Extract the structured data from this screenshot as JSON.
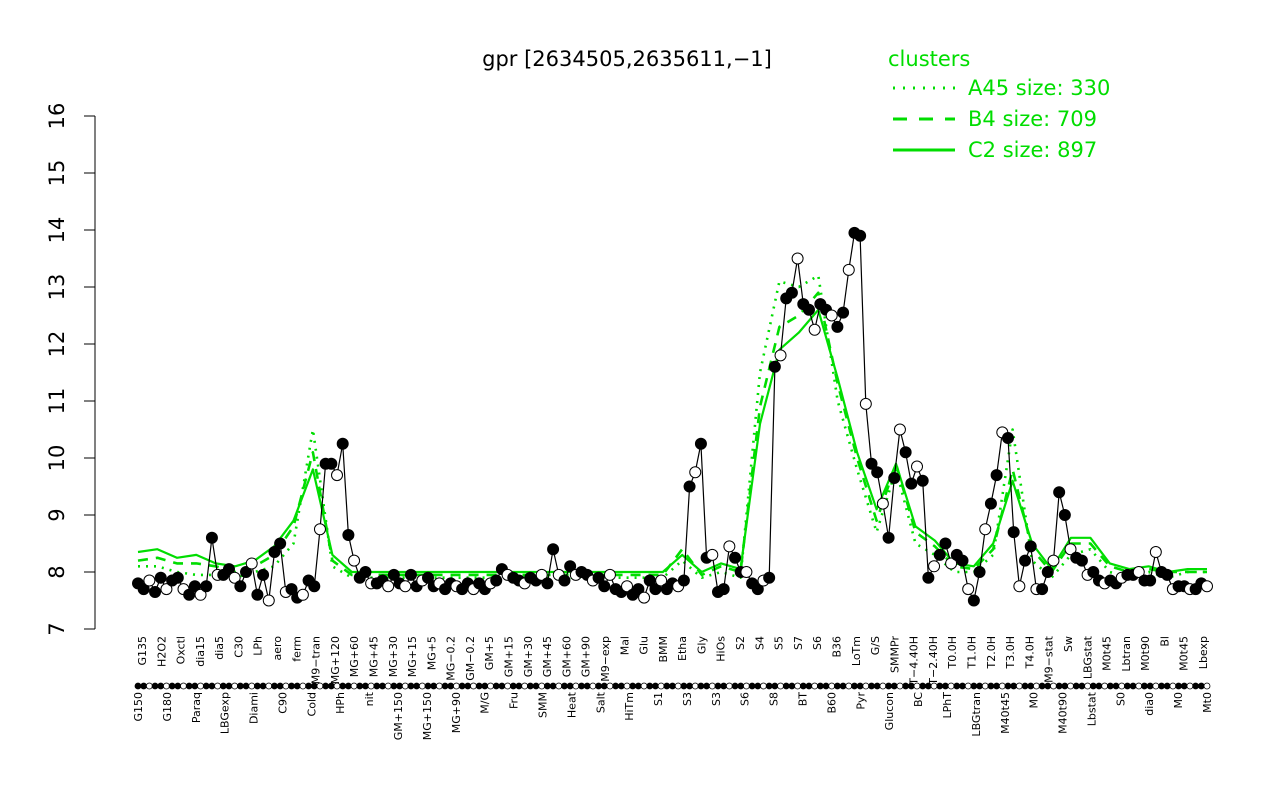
{
  "chart_data": {
    "type": "line",
    "title": "gpr [2634505,2635611,−1]",
    "xlabel": "",
    "ylabel": "",
    "ylim": [
      7,
      16
    ],
    "yticks": [
      7,
      8,
      9,
      10,
      11,
      12,
      13,
      14,
      15,
      16
    ],
    "grid": false,
    "x_tick_labels_top": [
      "G135",
      "H2O2",
      "Oxctl",
      "dia15",
      "dia5",
      "C30",
      "LPh",
      "aero",
      "ferm",
      "M9−tran",
      "MG+120",
      "MG+60",
      "MG+45",
      "MG+30",
      "MG+15",
      "MG+5",
      "MG−0.2",
      "GM−0.2",
      "GM+5",
      "GM+15",
      "GM+30",
      "GM+45",
      "GM+60",
      "GM+90",
      "M9−exp",
      "Mal",
      "Glu",
      "BMM",
      "Etha",
      "Gly",
      "HiOs",
      "S2",
      "S4",
      "S5",
      "S7",
      "S6",
      "B36",
      "LoTm",
      "G/S",
      "SMMPr",
      "T−4.40H",
      "T−2.40H",
      "T0.0H",
      "T1.0H",
      "T2.0H",
      "T3.0H",
      "T4.0H",
      "M9−stat",
      "Sw",
      "LBGstat",
      "M0t45",
      "Lbtran",
      "M0t90",
      "Bl",
      "M0t45",
      "Lbexp"
    ],
    "x_tick_labels_bottom": [
      "G150",
      "G180",
      "Paraq",
      "LBGexp",
      "Diami",
      "C90",
      "Cold",
      "HPh",
      "nit",
      "GM+150",
      "MG+150",
      "MG+90",
      "M/G",
      "Fru",
      "SMM",
      "Heat",
      "Salt",
      "HiTm",
      "S1",
      "S3",
      "S3",
      "S6",
      "S8",
      "BT",
      "B60",
      "Pyr",
      "Glucon",
      "BC",
      "LPhT",
      "LBGtran",
      "M40t45",
      "M0",
      "M40t90",
      "Lbstat",
      "S0",
      "dia0",
      "M0",
      "Mt0"
    ],
    "legend": {
      "title": "clusters",
      "position": "top-right",
      "entries": [
        {
          "label": "A45 size: 330",
          "style": "dotted"
        },
        {
          "label": "B4 size: 709",
          "style": "dashed"
        },
        {
          "label": "C2 size: 897",
          "style": "solid"
        }
      ]
    },
    "colors": {
      "cluster_lines": "#00dd00",
      "points": "#000000",
      "axis": "#000000"
    },
    "series": [
      {
        "x": 1,
        "y": 7.8
      },
      {
        "x": 2,
        "y": 7.7
      },
      {
        "x": 3,
        "y": 7.85
      },
      {
        "x": 4,
        "y": 7.65
      },
      {
        "x": 5,
        "y": 7.9
      },
      {
        "x": 6,
        "y": 7.7
      },
      {
        "x": 7,
        "y": 7.85
      },
      {
        "x": 8,
        "y": 7.9
      },
      {
        "x": 9,
        "y": 7.7
      },
      {
        "x": 10,
        "y": 7.6
      },
      {
        "x": 11,
        "y": 7.75
      },
      {
        "x": 12,
        "y": 7.6
      },
      {
        "x": 13,
        "y": 7.75
      },
      {
        "x": 14,
        "y": 8.6
      },
      {
        "x": 15,
        "y": 7.95
      },
      {
        "x": 16,
        "y": 7.95
      },
      {
        "x": 17,
        "y": 8.05
      },
      {
        "x": 18,
        "y": 7.9
      },
      {
        "x": 19,
        "y": 7.75
      },
      {
        "x": 20,
        "y": 8.0
      },
      {
        "x": 21,
        "y": 8.15
      },
      {
        "x": 22,
        "y": 7.6
      },
      {
        "x": 23,
        "y": 7.95
      },
      {
        "x": 24,
        "y": 7.5
      },
      {
        "x": 25,
        "y": 8.35
      },
      {
        "x": 26,
        "y": 8.5
      },
      {
        "x": 27,
        "y": 7.65
      },
      {
        "x": 28,
        "y": 7.7
      },
      {
        "x": 29,
        "y": 7.55
      },
      {
        "x": 30,
        "y": 7.6
      },
      {
        "x": 31,
        "y": 7.85
      },
      {
        "x": 32,
        "y": 7.75
      },
      {
        "x": 33,
        "y": 8.75
      },
      {
        "x": 34,
        "y": 9.9
      },
      {
        "x": 35,
        "y": 9.9
      },
      {
        "x": 36,
        "y": 9.7
      },
      {
        "x": 37,
        "y": 10.25
      },
      {
        "x": 38,
        "y": 8.65
      },
      {
        "x": 39,
        "y": 8.2
      },
      {
        "x": 40,
        "y": 7.9
      },
      {
        "x": 41,
        "y": 8.0
      },
      {
        "x": 42,
        "y": 7.8
      },
      {
        "x": 43,
        "y": 7.8
      },
      {
        "x": 44,
        "y": 7.85
      },
      {
        "x": 45,
        "y": 7.75
      },
      {
        "x": 46,
        "y": 7.95
      },
      {
        "x": 47,
        "y": 7.8
      },
      {
        "x": 48,
        "y": 7.75
      },
      {
        "x": 49,
        "y": 7.95
      },
      {
        "x": 50,
        "y": 7.75
      },
      {
        "x": 51,
        "y": 7.85
      },
      {
        "x": 52,
        "y": 7.9
      },
      {
        "x": 53,
        "y": 7.75
      },
      {
        "x": 54,
        "y": 7.8
      },
      {
        "x": 55,
        "y": 7.7
      },
      {
        "x": 56,
        "y": 7.8
      },
      {
        "x": 57,
        "y": 7.75
      },
      {
        "x": 58,
        "y": 7.7
      },
      {
        "x": 59,
        "y": 7.8
      },
      {
        "x": 60,
        "y": 7.7
      },
      {
        "x": 61,
        "y": 7.8
      },
      {
        "x": 62,
        "y": 7.7
      },
      {
        "x": 63,
        "y": 7.8
      },
      {
        "x": 64,
        "y": 7.85
      },
      {
        "x": 65,
        "y": 8.05
      },
      {
        "x": 66,
        "y": 7.95
      },
      {
        "x": 67,
        "y": 7.9
      },
      {
        "x": 68,
        "y": 7.85
      },
      {
        "x": 69,
        "y": 7.8
      },
      {
        "x": 70,
        "y": 7.9
      },
      {
        "x": 71,
        "y": 7.85
      },
      {
        "x": 72,
        "y": 7.95
      },
      {
        "x": 73,
        "y": 7.8
      },
      {
        "x": 74,
        "y": 8.4
      },
      {
        "x": 75,
        "y": 7.95
      },
      {
        "x": 76,
        "y": 7.85
      },
      {
        "x": 77,
        "y": 8.1
      },
      {
        "x": 78,
        "y": 7.95
      },
      {
        "x": 79,
        "y": 8.0
      },
      {
        "x": 80,
        "y": 7.95
      },
      {
        "x": 81,
        "y": 7.85
      },
      {
        "x": 82,
        "y": 7.9
      },
      {
        "x": 83,
        "y": 7.75
      },
      {
        "x": 84,
        "y": 7.95
      },
      {
        "x": 85,
        "y": 7.7
      },
      {
        "x": 86,
        "y": 7.65
      },
      {
        "x": 87,
        "y": 7.75
      },
      {
        "x": 88,
        "y": 7.6
      },
      {
        "x": 89,
        "y": 7.7
      },
      {
        "x": 90,
        "y": 7.55
      },
      {
        "x": 91,
        "y": 7.85
      },
      {
        "x": 92,
        "y": 7.7
      },
      {
        "x": 93,
        "y": 7.85
      },
      {
        "x": 94,
        "y": 7.7
      },
      {
        "x": 95,
        "y": 7.8
      },
      {
        "x": 96,
        "y": 7.75
      },
      {
        "x": 97,
        "y": 7.85
      },
      {
        "x": 98,
        "y": 9.5
      },
      {
        "x": 99,
        "y": 9.75
      },
      {
        "x": 100,
        "y": 10.25
      },
      {
        "x": 101,
        "y": 8.25
      },
      {
        "x": 102,
        "y": 8.3
      },
      {
        "x": 103,
        "y": 7.65
      },
      {
        "x": 104,
        "y": 7.7
      },
      {
        "x": 105,
        "y": 8.45
      },
      {
        "x": 106,
        "y": 8.25
      },
      {
        "x": 107,
        "y": 8.0
      },
      {
        "x": 108,
        "y": 8.0
      },
      {
        "x": 109,
        "y": 7.8
      },
      {
        "x": 110,
        "y": 7.7
      },
      {
        "x": 111,
        "y": 7.85
      },
      {
        "x": 112,
        "y": 7.9
      },
      {
        "x": 113,
        "y": 11.6
      },
      {
        "x": 114,
        "y": 11.8
      },
      {
        "x": 115,
        "y": 12.8
      },
      {
        "x": 116,
        "y": 12.9
      },
      {
        "x": 117,
        "y": 13.5
      },
      {
        "x": 118,
        "y": 12.7
      },
      {
        "x": 119,
        "y": 12.6
      },
      {
        "x": 120,
        "y": 12.25
      },
      {
        "x": 121,
        "y": 12.7
      },
      {
        "x": 122,
        "y": 12.6
      },
      {
        "x": 123,
        "y": 12.5
      },
      {
        "x": 124,
        "y": 12.3
      },
      {
        "x": 125,
        "y": 12.55
      },
      {
        "x": 126,
        "y": 13.3
      },
      {
        "x": 127,
        "y": 13.95
      },
      {
        "x": 128,
        "y": 13.9
      },
      {
        "x": 129,
        "y": 10.95
      },
      {
        "x": 130,
        "y": 9.9
      },
      {
        "x": 131,
        "y": 9.75
      },
      {
        "x": 132,
        "y": 9.2
      },
      {
        "x": 133,
        "y": 8.6
      },
      {
        "x": 134,
        "y": 9.65
      },
      {
        "x": 135,
        "y": 10.5
      },
      {
        "x": 136,
        "y": 10.1
      },
      {
        "x": 137,
        "y": 9.55
      },
      {
        "x": 138,
        "y": 9.85
      },
      {
        "x": 139,
        "y": 9.6
      },
      {
        "x": 140,
        "y": 7.9
      },
      {
        "x": 141,
        "y": 8.1
      },
      {
        "x": 142,
        "y": 8.3
      },
      {
        "x": 143,
        "y": 8.5
      },
      {
        "x": 144,
        "y": 8.15
      },
      {
        "x": 145,
        "y": 8.3
      },
      {
        "x": 146,
        "y": 8.2
      },
      {
        "x": 147,
        "y": 7.7
      },
      {
        "x": 148,
        "y": 7.5
      },
      {
        "x": 149,
        "y": 8.0
      },
      {
        "x": 150,
        "y": 8.75
      },
      {
        "x": 151,
        "y": 9.2
      },
      {
        "x": 152,
        "y": 9.7
      },
      {
        "x": 153,
        "y": 10.45
      },
      {
        "x": 154,
        "y": 10.35
      },
      {
        "x": 155,
        "y": 8.7
      },
      {
        "x": 156,
        "y": 7.75
      },
      {
        "x": 157,
        "y": 8.2
      },
      {
        "x": 158,
        "y": 8.45
      },
      {
        "x": 159,
        "y": 7.7
      },
      {
        "x": 160,
        "y": 7.7
      },
      {
        "x": 161,
        "y": 8.0
      },
      {
        "x": 162,
        "y": 8.2
      },
      {
        "x": 163,
        "y": 9.4
      },
      {
        "x": 164,
        "y": 9.0
      },
      {
        "x": 165,
        "y": 8.4
      },
      {
        "x": 166,
        "y": 8.25
      },
      {
        "x": 167,
        "y": 8.2
      },
      {
        "x": 168,
        "y": 7.95
      },
      {
        "x": 169,
        "y": 8.0
      },
      {
        "x": 170,
        "y": 7.85
      },
      {
        "x": 171,
        "y": 7.8
      },
      {
        "x": 172,
        "y": 7.85
      },
      {
        "x": 173,
        "y": 7.8
      },
      {
        "x": 174,
        "y": 7.9
      },
      {
        "x": 175,
        "y": 7.95
      },
      {
        "x": 176,
        "y": 7.95
      },
      {
        "x": 177,
        "y": 8.0
      },
      {
        "x": 178,
        "y": 7.85
      },
      {
        "x": 179,
        "y": 7.85
      },
      {
        "x": 180,
        "y": 8.35
      },
      {
        "x": 181,
        "y": 8.0
      },
      {
        "x": 182,
        "y": 7.95
      },
      {
        "x": 183,
        "y": 7.7
      },
      {
        "x": 184,
        "y": 7.75
      },
      {
        "x": 185,
        "y": 7.75
      },
      {
        "x": 186,
        "y": 7.7
      },
      {
        "x": 187,
        "y": 7.7
      },
      {
        "x": 188,
        "y": 7.8
      },
      {
        "x": 189,
        "y": 7.75
      }
    ],
    "clusters": [
      {
        "name": "A45 size: 330",
        "style": "dotted",
        "values": [
          8.1,
          8.1,
          8.0,
          7.95,
          7.95,
          7.9,
          8.0,
          8.1,
          8.5,
          10.5,
          8.1,
          7.9,
          7.9,
          7.9,
          7.9,
          7.9,
          7.9,
          7.9,
          7.9,
          7.9,
          7.9,
          7.9,
          7.9,
          7.9,
          7.9,
          7.9,
          7.9,
          7.9,
          8.2,
          7.9,
          8.0,
          7.9,
          11.5,
          13.1,
          13.0,
          13.2,
          11.0,
          9.8,
          8.7,
          9.8,
          8.5,
          8.3,
          8.0,
          8.0,
          8.3,
          10.5,
          8.2,
          7.9,
          8.3,
          8.4,
          8.0,
          7.9,
          8.0,
          7.9,
          8.0,
          8.0
        ]
      },
      {
        "name": "B4 size: 709",
        "style": "dashed",
        "values": [
          8.2,
          8.25,
          8.15,
          8.15,
          8.1,
          8.0,
          8.1,
          8.3,
          8.8,
          10.1,
          8.2,
          7.95,
          7.95,
          7.95,
          7.95,
          7.95,
          7.95,
          7.95,
          7.95,
          7.95,
          7.95,
          7.95,
          7.95,
          7.95,
          7.95,
          7.95,
          7.95,
          7.95,
          8.4,
          7.95,
          8.1,
          8.0,
          10.9,
          12.3,
          12.5,
          12.9,
          11.3,
          10.0,
          8.9,
          9.9,
          8.7,
          8.45,
          8.1,
          8.05,
          8.4,
          9.8,
          8.4,
          8.0,
          8.5,
          8.5,
          8.1,
          8.0,
          8.05,
          8.0,
          8.0,
          8.0
        ]
      },
      {
        "name": "C2 size: 897",
        "style": "solid",
        "values": [
          8.35,
          8.4,
          8.25,
          8.3,
          8.15,
          8.1,
          8.2,
          8.45,
          8.9,
          9.8,
          8.3,
          8.0,
          8.0,
          8.0,
          8.0,
          8.0,
          8.0,
          8.0,
          8.0,
          8.0,
          8.0,
          8.0,
          8.0,
          8.0,
          8.0,
          8.0,
          8.0,
          8.0,
          8.3,
          8.0,
          8.15,
          8.05,
          10.6,
          11.9,
          12.2,
          12.6,
          11.4,
          10.1,
          9.1,
          9.9,
          8.8,
          8.55,
          8.15,
          8.1,
          8.5,
          9.6,
          8.5,
          8.05,
          8.6,
          8.6,
          8.15,
          8.05,
          8.1,
          8.0,
          8.05,
          8.05
        ]
      }
    ]
  }
}
